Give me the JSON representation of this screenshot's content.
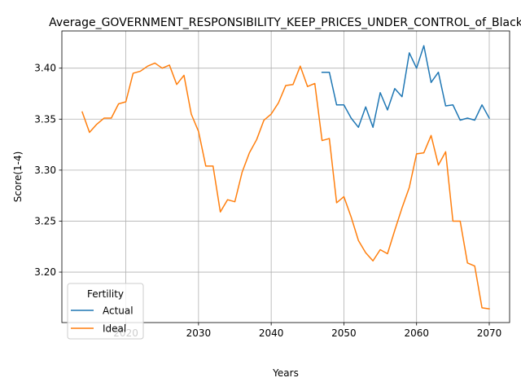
{
  "chart_data": {
    "type": "line",
    "title": "Average_GOVERNMENT_RESPONSIBILITY_KEEP_PRICES_UNDER_CONTROL_of_Black",
    "xlabel": "Years",
    "ylabel": "Score(1-4)",
    "xlim": [
      2011.2,
      2072.8
    ],
    "ylim": [
      3.1505,
      3.4365
    ],
    "xticks": [
      2020,
      2030,
      2040,
      2050,
      2060,
      2070
    ],
    "yticks": [
      3.2,
      3.25,
      3.3,
      3.35,
      3.4
    ],
    "grid": true,
    "legend": {
      "title": "Fertility",
      "placement": "lower-left"
    },
    "series": [
      {
        "name": "Actual",
        "color": "#1f77b4",
        "x": [
          2047,
          2048,
          2049,
          2050,
          2051,
          2052,
          2053,
          2054,
          2055,
          2056,
          2057,
          2058,
          2059,
          2060,
          2061,
          2062,
          2063,
          2064,
          2065,
          2066,
          2067,
          2068,
          2069,
          2070
        ],
        "y": [
          3.396,
          3.396,
          3.364,
          3.364,
          3.351,
          3.342,
          3.362,
          3.342,
          3.376,
          3.359,
          3.38,
          3.372,
          3.415,
          3.4,
          3.422,
          3.386,
          3.396,
          3.363,
          3.364,
          3.349,
          3.351,
          3.349,
          3.364,
          3.351
        ]
      },
      {
        "name": "Ideal",
        "color": "#ff7f0e",
        "x": [
          2014,
          2015,
          2016,
          2017,
          2018,
          2019,
          2020,
          2021,
          2022,
          2023,
          2024,
          2025,
          2026,
          2027,
          2028,
          2029,
          2030,
          2031,
          2032,
          2033,
          2034,
          2035,
          2036,
          2037,
          2038,
          2039,
          2040,
          2041,
          2042,
          2043,
          2044,
          2045,
          2046,
          2047,
          2048,
          2049,
          2050,
          2051,
          2052,
          2053,
          2054,
          2055,
          2056,
          2057,
          2058,
          2059,
          2060,
          2061,
          2062,
          2063,
          2064,
          2065,
          2066,
          2067,
          2068,
          2069,
          2070
        ],
        "y": [
          3.357,
          3.337,
          3.345,
          3.351,
          3.351,
          3.365,
          3.367,
          3.395,
          3.397,
          3.402,
          3.405,
          3.4,
          3.403,
          3.384,
          3.393,
          3.355,
          3.338,
          3.304,
          3.304,
          3.259,
          3.271,
          3.269,
          3.298,
          3.317,
          3.33,
          3.349,
          3.355,
          3.366,
          3.383,
          3.384,
          3.402,
          3.382,
          3.385,
          3.329,
          3.331,
          3.268,
          3.274,
          3.254,
          3.231,
          3.219,
          3.211,
          3.222,
          3.218,
          3.241,
          3.263,
          3.283,
          3.316,
          3.317,
          3.334,
          3.305,
          3.318,
          3.25,
          3.25,
          3.209,
          3.206,
          3.165,
          3.164
        ]
      }
    ]
  }
}
